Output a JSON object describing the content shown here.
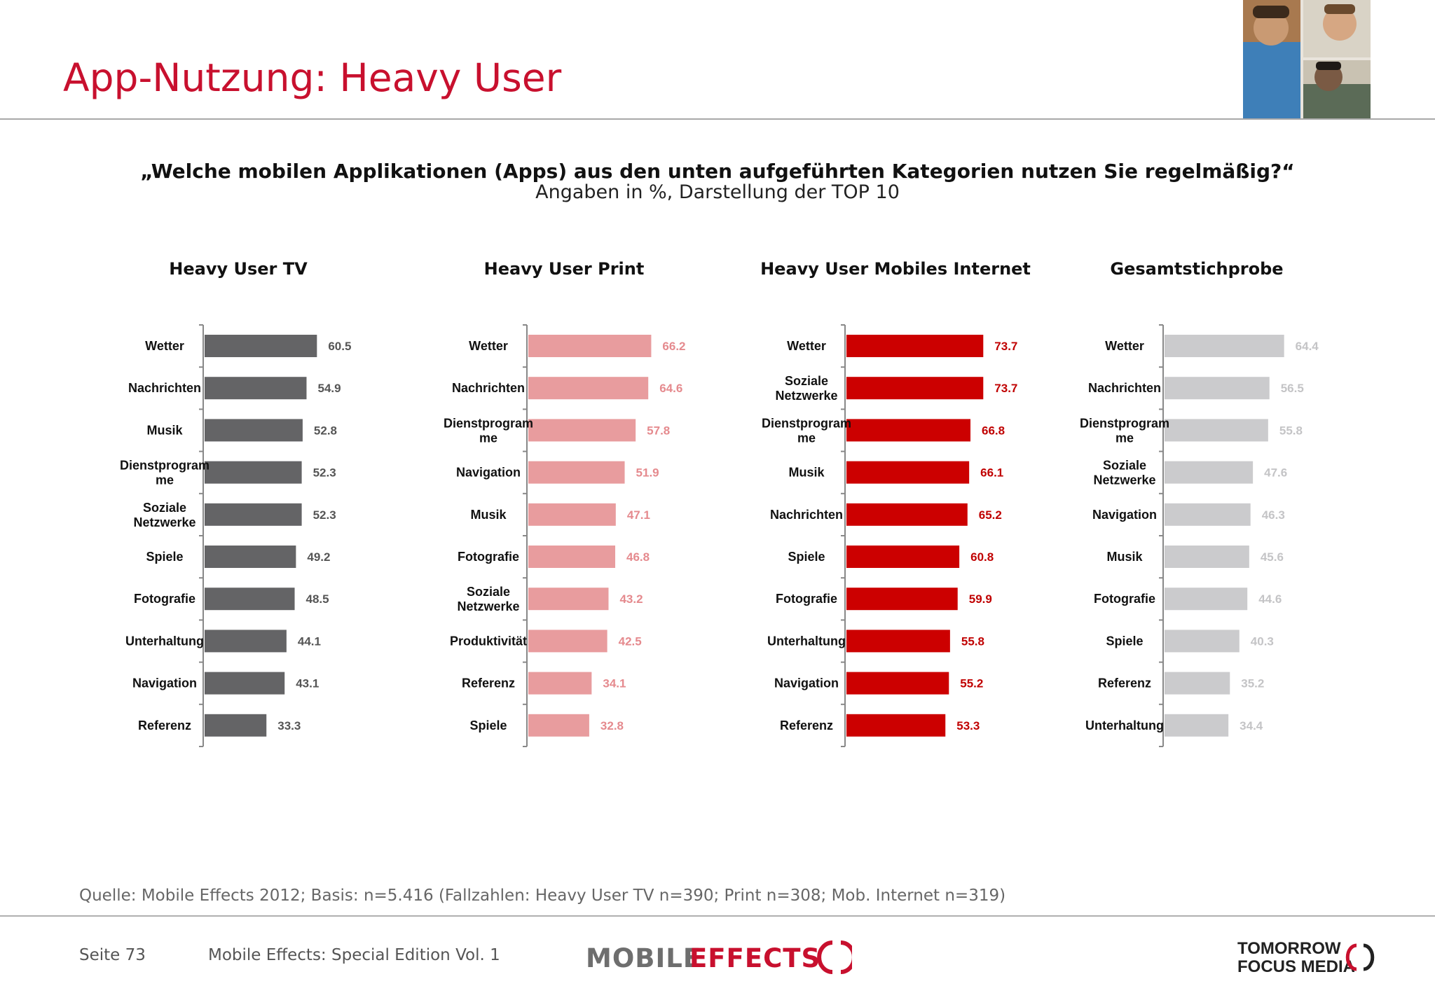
{
  "page": {
    "title": "App-Nutzung: Heavy User",
    "question": "„Welche mobilen Applikationen (Apps) aus den unten aufgeführten Kategorien nutzen Sie regelmäßig?“",
    "subtitle": "Angaben in %, Darstellung der TOP 10",
    "source": "Quelle: Mobile Effects 2012; Basis: n=5.416 (Fallzahlen: Heavy User TV n=390; Print n=308; Mob. Internet n=319)",
    "page_number": "Seite 73",
    "edition": "Mobile Effects: Special Edition Vol. 1",
    "logo_mobile_effects": "MOBILEEFFECTS",
    "logo_tomorrow_focus": "TOMORROW FOCUS MEDIA",
    "colors": {
      "title": "#c8102e",
      "tv": "#646466",
      "print": "#e89c9e",
      "mobile": "#cc0000",
      "total": "#cbcbcd"
    }
  },
  "chart_data": [
    {
      "type": "bar",
      "orientation": "horizontal",
      "title": "Heavy User TV",
      "color": "#646466",
      "label_color": "#555555",
      "categories": [
        "Wetter",
        "Nachrichten",
        "Musik",
        "Dienstprogramme",
        "Soziale Netzwerke",
        "Spiele",
        "Fotografie",
        "Unterhaltung",
        "Navigation",
        "Referenz"
      ],
      "category_labels": [
        [
          "Wetter"
        ],
        [
          "Nachrichten"
        ],
        [
          "Musik"
        ],
        [
          "Dienstprogram",
          "me"
        ],
        [
          "Soziale",
          "Netzwerke"
        ],
        [
          "Spiele"
        ],
        [
          "Fotografie"
        ],
        [
          "Unterhaltung"
        ],
        [
          "Navigation"
        ],
        [
          "Referenz"
        ]
      ],
      "values": [
        60.5,
        54.9,
        52.8,
        52.3,
        52.3,
        49.2,
        48.5,
        44.1,
        43.1,
        33.3
      ]
    },
    {
      "type": "bar",
      "orientation": "horizontal",
      "title": "Heavy User Print",
      "color": "#e89c9e",
      "label_color": "#e58a8e",
      "categories": [
        "Wetter",
        "Nachrichten",
        "Dienstprogramme",
        "Navigation",
        "Musik",
        "Fotografie",
        "Soziale Netzwerke",
        "Produktivität",
        "Referenz",
        "Spiele"
      ],
      "category_labels": [
        [
          "Wetter"
        ],
        [
          "Nachrichten"
        ],
        [
          "Dienstprogram",
          "me"
        ],
        [
          "Navigation"
        ],
        [
          "Musik"
        ],
        [
          "Fotografie"
        ],
        [
          "Soziale",
          "Netzwerke"
        ],
        [
          "Produktivität"
        ],
        [
          "Referenz"
        ],
        [
          "Spiele"
        ]
      ],
      "values": [
        66.2,
        64.6,
        57.8,
        51.9,
        47.1,
        46.8,
        43.2,
        42.5,
        34.1,
        32.8
      ]
    },
    {
      "type": "bar",
      "orientation": "horizontal",
      "title": "Heavy User Mobiles Internet",
      "color": "#cc0000",
      "label_color": "#c00000",
      "categories": [
        "Wetter",
        "Soziale Netzwerke",
        "Dienstprogramme",
        "Musik",
        "Nachrichten",
        "Spiele",
        "Fotografie",
        "Unterhaltung",
        "Navigation",
        "Referenz"
      ],
      "category_labels": [
        [
          "Wetter"
        ],
        [
          "Soziale",
          "Netzwerke"
        ],
        [
          "Dienstprogram",
          "me"
        ],
        [
          "Musik"
        ],
        [
          "Nachrichten"
        ],
        [
          "Spiele"
        ],
        [
          "Fotografie"
        ],
        [
          "Unterhaltung"
        ],
        [
          "Navigation"
        ],
        [
          "Referenz"
        ]
      ],
      "values": [
        73.7,
        73.7,
        66.8,
        66.1,
        65.2,
        60.8,
        59.9,
        55.8,
        55.2,
        53.3
      ]
    },
    {
      "type": "bar",
      "orientation": "horizontal",
      "title": "Gesamtstichprobe",
      "color": "#cbcbcd",
      "label_color": "#c4c4c6",
      "categories": [
        "Wetter",
        "Nachrichten",
        "Dienstprogramme",
        "Soziale Netzwerke",
        "Navigation",
        "Musik",
        "Fotografie",
        "Spiele",
        "Referenz",
        "Unterhaltung"
      ],
      "category_labels": [
        [
          "Wetter"
        ],
        [
          "Nachrichten"
        ],
        [
          "Dienstprogram",
          "me"
        ],
        [
          "Soziale",
          "Netzwerke"
        ],
        [
          "Navigation"
        ],
        [
          "Musik"
        ],
        [
          "Fotografie"
        ],
        [
          "Spiele"
        ],
        [
          "Referenz"
        ],
        [
          "Unterhaltung"
        ]
      ],
      "values": [
        64.4,
        56.5,
        55.8,
        47.6,
        46.3,
        45.6,
        44.6,
        40.3,
        35.2,
        34.4
      ]
    }
  ]
}
